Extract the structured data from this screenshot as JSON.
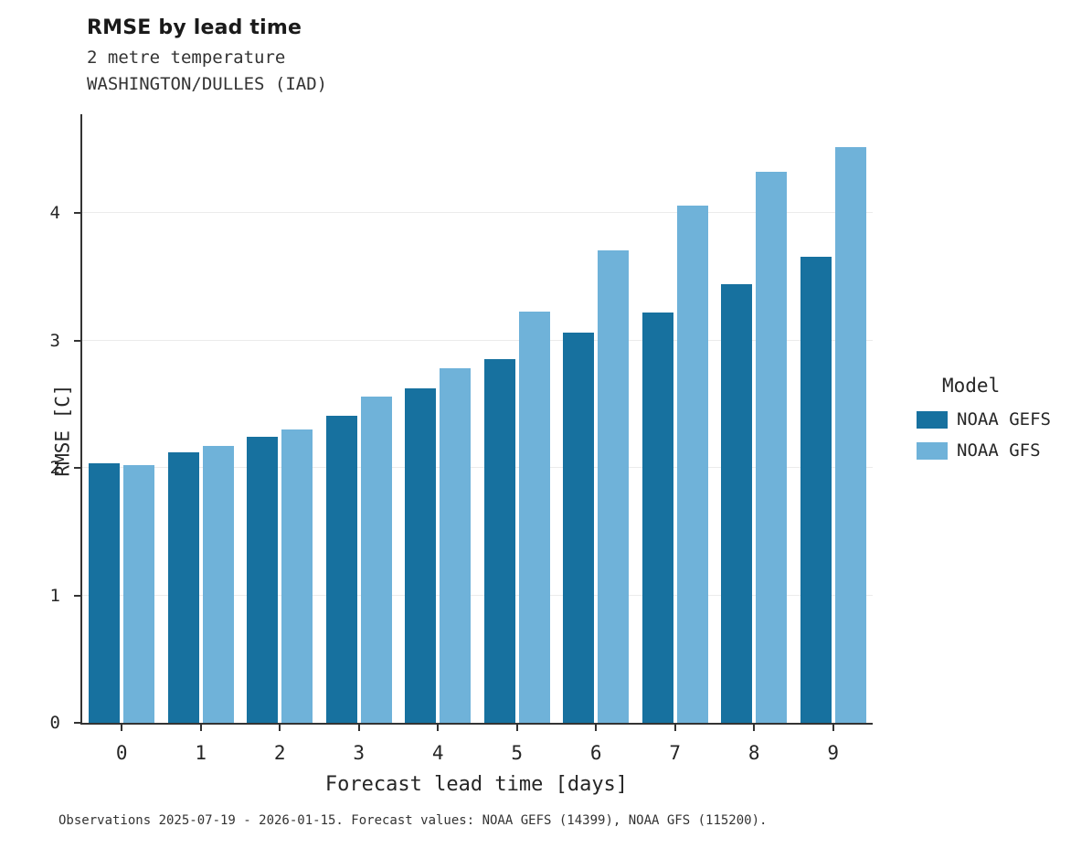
{
  "chart_data": {
    "type": "bar",
    "title": "RMSE by lead time",
    "subtitle_line1": "2 metre temperature",
    "subtitle_line2": "WASHINGTON/DULLES (IAD)",
    "xlabel": "Forecast lead time [days]",
    "ylabel": "RMSE [C]",
    "categories": [
      "0",
      "1",
      "2",
      "3",
      "4",
      "5",
      "6",
      "7",
      "8",
      "9"
    ],
    "series": [
      {
        "name": "NOAA GEFS",
        "color": "#17719f",
        "values": [
          2.04,
          2.13,
          2.25,
          2.42,
          2.63,
          2.86,
          3.07,
          3.23,
          3.45,
          3.67
        ]
      },
      {
        "name": "NOAA GFS",
        "color": "#6fb2d9",
        "values": [
          2.03,
          2.18,
          2.31,
          2.57,
          2.79,
          3.24,
          3.72,
          4.07,
          4.34,
          4.53
        ]
      }
    ],
    "ylim": [
      0,
      4.79
    ],
    "yticks": [
      0,
      1,
      2,
      3,
      4
    ],
    "grid": "horizontal, light gray",
    "legend_title": "Model",
    "legend_position": "right, outside plot",
    "footnote": "Observations 2025-07-19 - 2026-01-15. Forecast values: NOAA GEFS (14399), NOAA GFS (115200)."
  }
}
